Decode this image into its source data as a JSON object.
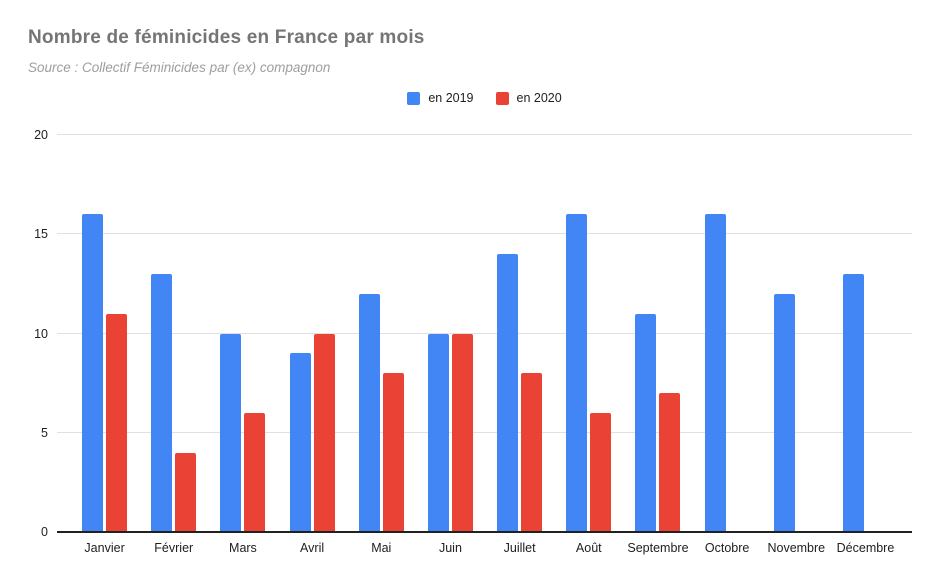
{
  "title": "Nombre de féminicides en France par mois",
  "subtitle": "Source : Collectif Féminicides par (ex) compagnon",
  "chart_data": {
    "type": "bar",
    "title": "Nombre de féminicides en France par mois",
    "subtitle": "Source : Collectif Féminicides par (ex) compagnon",
    "categories": [
      "Janvier",
      "Février",
      "Mars",
      "Avril",
      "Mai",
      "Juin",
      "Juillet",
      "Août",
      "Septembre",
      "Octobre",
      "Novembre",
      "Décembre"
    ],
    "series": [
      {
        "name": "en 2019",
        "color": "#4285f4",
        "values": [
          16,
          13,
          10,
          9,
          12,
          10,
          14,
          16,
          11,
          16,
          12,
          13
        ]
      },
      {
        "name": "en 2020",
        "color": "#ea4335",
        "values": [
          11,
          4,
          6,
          10,
          8,
          10,
          8,
          6,
          7,
          null,
          null,
          null
        ]
      }
    ],
    "xlabel": "",
    "ylabel": "",
    "ylim": [
      0,
      20
    ],
    "yticks": [
      0,
      5,
      10,
      15,
      20
    ],
    "grid": true,
    "legend_position": "top-center",
    "gridline_color": "#e0e0e0",
    "baseline_color": "#212121",
    "title_color": "#757575",
    "subtitle_color": "#9e9e9e",
    "axis_label_color": "#212121",
    "background_color": "#ffffff"
  }
}
